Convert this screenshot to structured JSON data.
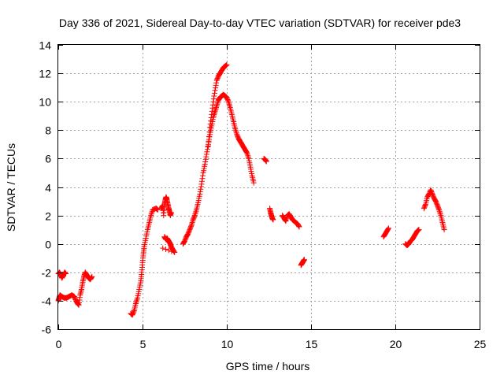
{
  "chart_data": {
    "type": "scatter",
    "title": "Day 336 of 2021, Sidereal Day-to-day VTEC variation (SDTVAR) for receiver pde3",
    "xlabel": "GPS time / hours",
    "ylabel": "SDTVAR / TECUs",
    "xlim": [
      0,
      25
    ],
    "ylim": [
      -6,
      14
    ],
    "xticks": [
      "0",
      "5",
      "10",
      "15",
      "20",
      "25"
    ],
    "yticks": [
      "-6",
      "-4",
      "-2",
      "0",
      "2",
      "4",
      "6",
      "8",
      "10",
      "12",
      "14"
    ],
    "grid": true,
    "marker": "+",
    "color": "#ff0000",
    "segments": [
      [
        [
          0.0,
          -4.0
        ],
        [
          0.05,
          -3.8
        ],
        [
          0.1,
          -3.6
        ],
        [
          0.2,
          -3.7
        ],
        [
          0.35,
          -3.8
        ],
        [
          0.5,
          -3.8
        ],
        [
          0.65,
          -3.7
        ],
        [
          0.8,
          -3.6
        ],
        [
          0.95,
          -3.7
        ],
        [
          1.05,
          -4.0
        ],
        [
          1.15,
          -4.2
        ],
        [
          1.22,
          -4.3
        ],
        [
          1.3,
          -3.6
        ],
        [
          1.38,
          -3.2
        ],
        [
          1.45,
          -2.7
        ],
        [
          1.52,
          -2.3
        ],
        [
          1.6,
          -2.0
        ],
        [
          1.7,
          -2.2
        ],
        [
          1.8,
          -2.4
        ],
        [
          1.9,
          -2.5
        ],
        [
          2.0,
          -2.3
        ]
      ],
      [
        [
          0.0,
          -2.1
        ],
        [
          0.08,
          -2.0
        ],
        [
          0.15,
          -2.2
        ],
        [
          0.22,
          -2.4
        ],
        [
          0.3,
          -2.2
        ],
        [
          0.38,
          -2.0
        ],
        [
          0.45,
          -2.1
        ]
      ],
      [
        [
          4.3,
          -4.9
        ],
        [
          4.4,
          -5.0
        ],
        [
          4.5,
          -4.7
        ],
        [
          4.6,
          -4.2
        ],
        [
          4.7,
          -3.8
        ],
        [
          4.8,
          -3.2
        ],
        [
          4.9,
          -2.6
        ],
        [
          4.95,
          -2.0
        ],
        [
          5.0,
          -1.3
        ],
        [
          5.05,
          -0.7
        ],
        [
          5.1,
          -0.2
        ],
        [
          5.2,
          0.4
        ],
        [
          5.3,
          1.0
        ],
        [
          5.4,
          1.5
        ],
        [
          5.5,
          2.0
        ],
        [
          5.6,
          2.4
        ],
        [
          5.8,
          2.5
        ],
        [
          5.9,
          2.4
        ]
      ],
      [
        [
          6.1,
          2.5
        ],
        [
          6.2,
          2.7
        ],
        [
          6.25,
          2.0
        ],
        [
          6.3,
          2.8
        ],
        [
          6.35,
          3.1
        ],
        [
          6.4,
          3.3
        ],
        [
          6.45,
          3.1
        ],
        [
          6.5,
          2.8
        ],
        [
          6.55,
          2.5
        ],
        [
          6.6,
          2.3
        ],
        [
          6.65,
          2.0
        ],
        [
          6.7,
          2.2
        ]
      ],
      [
        [
          6.3,
          0.5
        ],
        [
          6.35,
          0.4
        ],
        [
          6.4,
          0.3
        ],
        [
          6.45,
          0.4
        ],
        [
          6.5,
          0.3
        ],
        [
          6.55,
          0.2
        ],
        [
          6.6,
          0.1
        ],
        [
          6.65,
          0.0
        ],
        [
          6.7,
          -0.2
        ],
        [
          6.8,
          -0.4
        ],
        [
          6.9,
          -0.6
        ],
        [
          6.2,
          -0.3
        ]
      ],
      [
        [
          7.4,
          0.0
        ],
        [
          7.5,
          0.2
        ],
        [
          7.6,
          0.5
        ],
        [
          7.7,
          0.7
        ],
        [
          7.8,
          1.0
        ],
        [
          7.9,
          1.3
        ],
        [
          8.0,
          1.7
        ],
        [
          8.1,
          2.0
        ],
        [
          8.2,
          2.4
        ],
        [
          8.3,
          2.9
        ],
        [
          8.4,
          3.5
        ],
        [
          8.5,
          4.2
        ],
        [
          8.6,
          5.0
        ],
        [
          8.7,
          5.6
        ],
        [
          8.8,
          6.3
        ],
        [
          8.9,
          7.0
        ],
        [
          9.0,
          7.7
        ],
        [
          9.1,
          8.3
        ],
        [
          9.2,
          8.9
        ],
        [
          9.3,
          9.3
        ],
        [
          9.4,
          9.7
        ],
        [
          9.5,
          10.1
        ],
        [
          9.6,
          10.3
        ],
        [
          9.7,
          10.4
        ],
        [
          9.8,
          10.5
        ],
        [
          9.9,
          10.4
        ],
        [
          10.0,
          10.3
        ],
        [
          10.1,
          10.0
        ],
        [
          10.2,
          9.6
        ],
        [
          10.3,
          9.1
        ],
        [
          10.4,
          8.6
        ],
        [
          10.5,
          8.1
        ],
        [
          10.6,
          7.7
        ],
        [
          10.7,
          7.4
        ],
        [
          10.8,
          7.2
        ],
        [
          10.9,
          7.0
        ],
        [
          11.0,
          6.8
        ],
        [
          11.1,
          6.6
        ],
        [
          11.2,
          6.4
        ],
        [
          11.3,
          6.0
        ],
        [
          11.4,
          5.4
        ],
        [
          11.5,
          4.8
        ],
        [
          11.6,
          4.3
        ]
      ],
      [
        [
          8.9,
          6.9
        ],
        [
          9.0,
          8.2
        ],
        [
          9.1,
          9.1
        ],
        [
          9.2,
          10.0
        ],
        [
          9.3,
          10.8
        ],
        [
          9.4,
          11.5
        ],
        [
          9.5,
          11.8
        ],
        [
          9.6,
          12.0
        ],
        [
          9.7,
          12.2
        ],
        [
          9.8,
          12.4
        ],
        [
          9.9,
          12.5
        ],
        [
          10.0,
          12.6
        ]
      ],
      [
        [
          12.2,
          6.0
        ],
        [
          12.3,
          5.9
        ],
        [
          12.35,
          5.8
        ]
      ],
      [
        [
          12.55,
          2.5
        ],
        [
          12.6,
          2.2
        ],
        [
          12.65,
          2.0
        ],
        [
          12.7,
          1.8
        ],
        [
          12.75,
          1.7
        ]
      ],
      [
        [
          13.3,
          2.0
        ],
        [
          13.4,
          1.8
        ],
        [
          13.5,
          1.6
        ],
        [
          13.6,
          2.0
        ],
        [
          13.7,
          2.1
        ],
        [
          13.8,
          1.9
        ],
        [
          13.9,
          1.7
        ],
        [
          14.0,
          1.6
        ],
        [
          14.1,
          1.5
        ],
        [
          14.2,
          1.4
        ],
        [
          14.3,
          1.2
        ]
      ],
      [
        [
          14.4,
          -1.5
        ],
        [
          14.45,
          -1.4
        ],
        [
          14.5,
          -1.3
        ],
        [
          14.55,
          -1.2
        ],
        [
          14.6,
          -1.1
        ]
      ],
      [
        [
          19.3,
          0.5
        ],
        [
          19.4,
          0.7
        ],
        [
          19.5,
          0.9
        ],
        [
          19.6,
          1.1
        ]
      ],
      [
        [
          20.6,
          0.0
        ],
        [
          20.7,
          -0.1
        ],
        [
          20.8,
          0.0
        ],
        [
          20.9,
          0.2
        ],
        [
          21.0,
          0.3
        ],
        [
          21.1,
          0.5
        ],
        [
          21.2,
          0.7
        ],
        [
          21.3,
          0.9
        ],
        [
          21.4,
          1.0
        ]
      ],
      [
        [
          21.7,
          2.5
        ],
        [
          21.8,
          2.8
        ],
        [
          21.9,
          3.3
        ],
        [
          22.0,
          3.5
        ],
        [
          22.1,
          3.8
        ],
        [
          22.2,
          3.5
        ],
        [
          22.3,
          3.2
        ],
        [
          22.4,
          3.0
        ],
        [
          22.5,
          2.7
        ],
        [
          22.6,
          2.4
        ],
        [
          22.7,
          2.0
        ],
        [
          22.8,
          1.5
        ],
        [
          22.9,
          1.0
        ]
      ]
    ]
  }
}
